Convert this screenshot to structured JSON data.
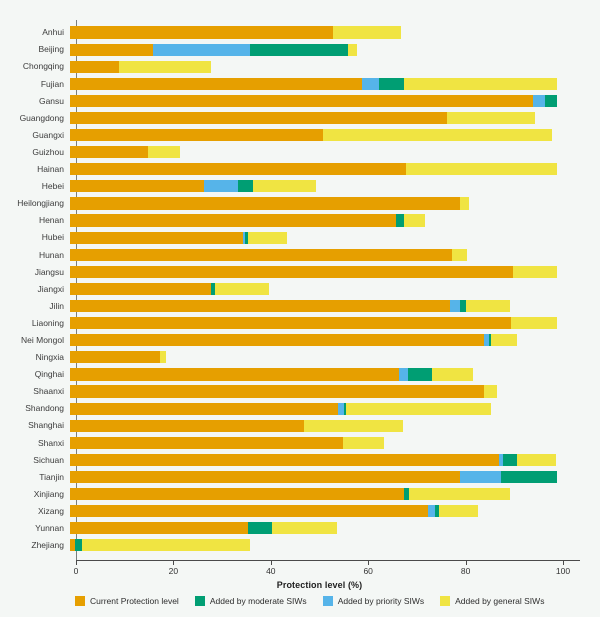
{
  "background": "#f4f7f5",
  "chart_data": {
    "type": "bar",
    "orientation": "horizontal",
    "stacked": true,
    "title": "",
    "xlabel": "Protection level (%)",
    "ylabel": "",
    "xlim": [
      0,
      100
    ],
    "xticks": [
      0,
      20,
      40,
      60,
      80,
      100
    ],
    "grid": false,
    "legend_position": "bottom",
    "categories": [
      "Anhui",
      "Beijing",
      "Chongqing",
      "Fujian",
      "Gansu",
      "Guangdong",
      "Guangxi",
      "Guizhou",
      "Hainan",
      "Hebei",
      "Heilongjiang",
      "Henan",
      "Hubei",
      "Hunan",
      "Jiangsu",
      "Jiangxi",
      "Jilin",
      "Liaoning",
      "Nei Mongol",
      "Ningxia",
      "Qinghai",
      "Shaanxi",
      "Shandong",
      "Shanghai",
      "Shanxi",
      "Sichuan",
      "Tianjin",
      "Xinjiang",
      "Xizang",
      "Yunnan",
      "Zhejiang"
    ],
    "series": [
      {
        "name": "Current Protection level",
        "color": "#E69F00",
        "values": [
          54,
          17,
          10,
          60,
          95,
          77.5,
          52,
          16,
          69,
          27.5,
          80,
          67,
          35.5,
          78.5,
          91,
          29,
          78,
          90.5,
          85,
          18.5,
          67.5,
          85,
          55,
          48,
          56,
          88,
          80,
          68.5,
          73.5,
          36.5,
          1
        ]
      },
      {
        "name": "Added by priority SIWs",
        "color": "#56B4E9",
        "values": [
          0,
          20,
          0,
          3.5,
          2.5,
          0,
          0,
          0,
          0,
          7,
          0,
          0,
          0.5,
          0,
          0,
          0,
          2,
          0,
          1,
          0,
          2,
          0,
          1.2,
          0,
          0,
          1,
          8.5,
          0,
          1.5,
          0,
          0
        ]
      },
      {
        "name": "Added by moderate SIWs",
        "color": "#009E73",
        "values": [
          0,
          20,
          0,
          5,
          2.5,
          0,
          0,
          0,
          0,
          3,
          0,
          1.5,
          0.5,
          0,
          0,
          0.8,
          1.3,
          0,
          0.5,
          0,
          4.8,
          0,
          0.5,
          0,
          0,
          2.8,
          11.5,
          1.2,
          0.8,
          5,
          1.5
        ]
      },
      {
        "name": "Added by general SIWs",
        "color": "#F0E442",
        "values": [
          14,
          2,
          19,
          31.5,
          0,
          18,
          47,
          6.5,
          31,
          13,
          2,
          4.5,
          8,
          3,
          9,
          11,
          9,
          9.5,
          5.2,
          1.3,
          8.5,
          2.7,
          29.7,
          20.3,
          8.5,
          8,
          0,
          20.6,
          8,
          13.4,
          34.4
        ]
      }
    ],
    "legend": [
      {
        "label": "Current Protection level",
        "color": "#E69F00"
      },
      {
        "label": "Added by moderate SIWs",
        "color": "#009E73"
      },
      {
        "label": "Added by priority SIWs",
        "color": "#56B4E9"
      },
      {
        "label": "Added by general SIWs",
        "color": "#F0E442"
      }
    ]
  }
}
